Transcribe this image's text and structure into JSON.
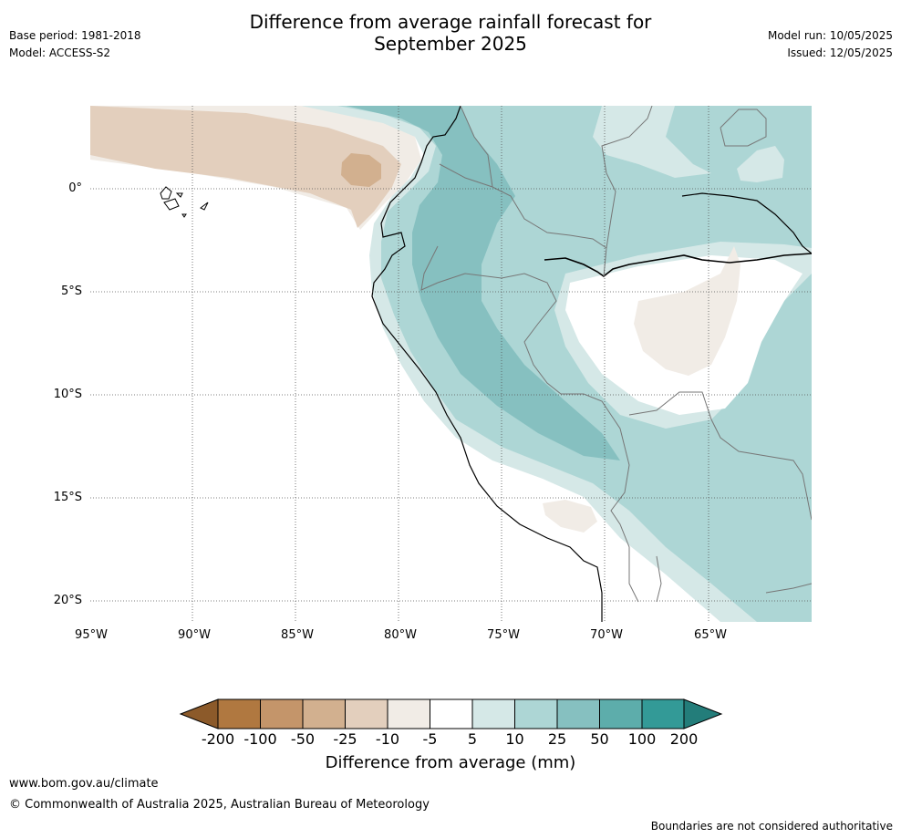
{
  "header": {
    "title_line1": "Difference from average rainfall forecast for",
    "title_line2": "September 2025",
    "base_period": "Base period: 1981-2018",
    "model": "Model: ACCESS-S2",
    "model_run": "Model run: 10/05/2025",
    "issued": "Issued: 12/05/2025"
  },
  "map": {
    "region": "Western South America",
    "lat_labels": [
      "0°",
      "5°S",
      "10°S",
      "15°S",
      "20°S"
    ],
    "lon_labels": [
      "95°W",
      "90°W",
      "85°W",
      "80°W",
      "75°W",
      "70°W",
      "65°W"
    ],
    "lat_range": [
      -21,
      4
    ],
    "lon_range": [
      -95,
      -60
    ],
    "gridlines": "dotted",
    "colors": {
      "dry_very_strong": "#8c5a2a",
      "dry_strong": "#b07840",
      "dry_50": "#c4956a",
      "dry_25": "#d2b08f",
      "dry_10": "#e3cfbd",
      "dry_5": "#f1ece6",
      "neutral": "#ffffff",
      "wet_5": "#d5e8e7",
      "wet_10": "#add6d5",
      "wet_25": "#86c0c0",
      "wet_50": "#5dadab",
      "wet_100": "#339a97",
      "wet_200": "#237d7a",
      "coastline": "#000000",
      "borders": "#777777"
    }
  },
  "colorbar": {
    "labels": [
      "-200",
      "-100",
      "-50",
      "-25",
      "-10",
      "-5",
      "5",
      "10",
      "25",
      "50",
      "100",
      "200"
    ],
    "title": "Difference from average (mm)"
  },
  "footer": {
    "url": "www.bom.gov.au/climate",
    "copyright": "© Commonwealth of Australia 2025, Australian Bureau of Meteorology",
    "disclaimer": "Boundaries are not considered authoritative"
  }
}
